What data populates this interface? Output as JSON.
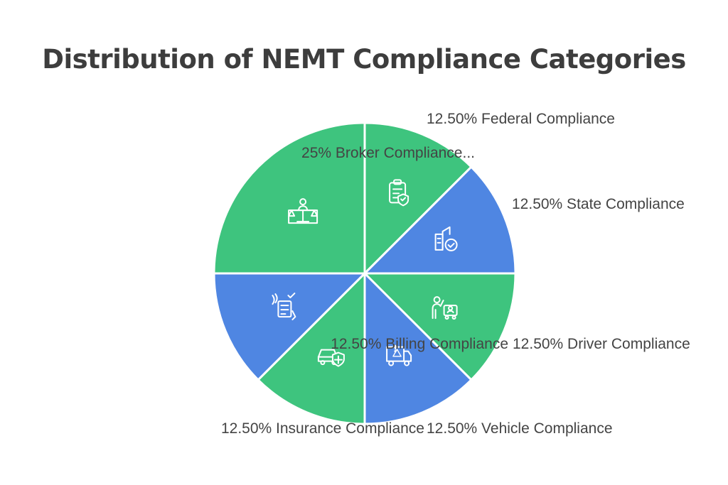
{
  "chart_data": {
    "type": "pie",
    "title": "Distribution of NEMT Compliance Categories",
    "slices": [
      {
        "label": "Federal Compliance",
        "value": 12.5,
        "display": "12.50% Federal Compliance",
        "color": "#3ec47e",
        "icon": "clipboard-shield-icon"
      },
      {
        "label": "State Compliance",
        "value": 12.5,
        "display": "12.50% State Compliance",
        "color": "#4f86e2",
        "icon": "building-check-icon"
      },
      {
        "label": "Driver Compliance",
        "value": 12.5,
        "display": "12.50% Driver Compliance",
        "color": "#3ec47e",
        "icon": "driver-badge-icon"
      },
      {
        "label": "Vehicle Compliance",
        "value": 12.5,
        "display": "12.50% Vehicle Compliance",
        "color": "#4f86e2",
        "icon": "truck-warning-icon"
      },
      {
        "label": "Insurance Compliance",
        "value": 12.5,
        "display": "12.50% Insurance Compliance",
        "color": "#3ec47e",
        "icon": "car-shield-icon"
      },
      {
        "label": "Billing Compliance",
        "value": 12.5,
        "display": "12.50% Billing Compliance",
        "color": "#4f86e2",
        "icon": "document-check-icon"
      },
      {
        "label": "Broker Compliance...",
        "value": 25,
        "display": "25% Broker Compliance...",
        "color": "#3ec47e",
        "icon": "scales-person-icon"
      }
    ]
  }
}
